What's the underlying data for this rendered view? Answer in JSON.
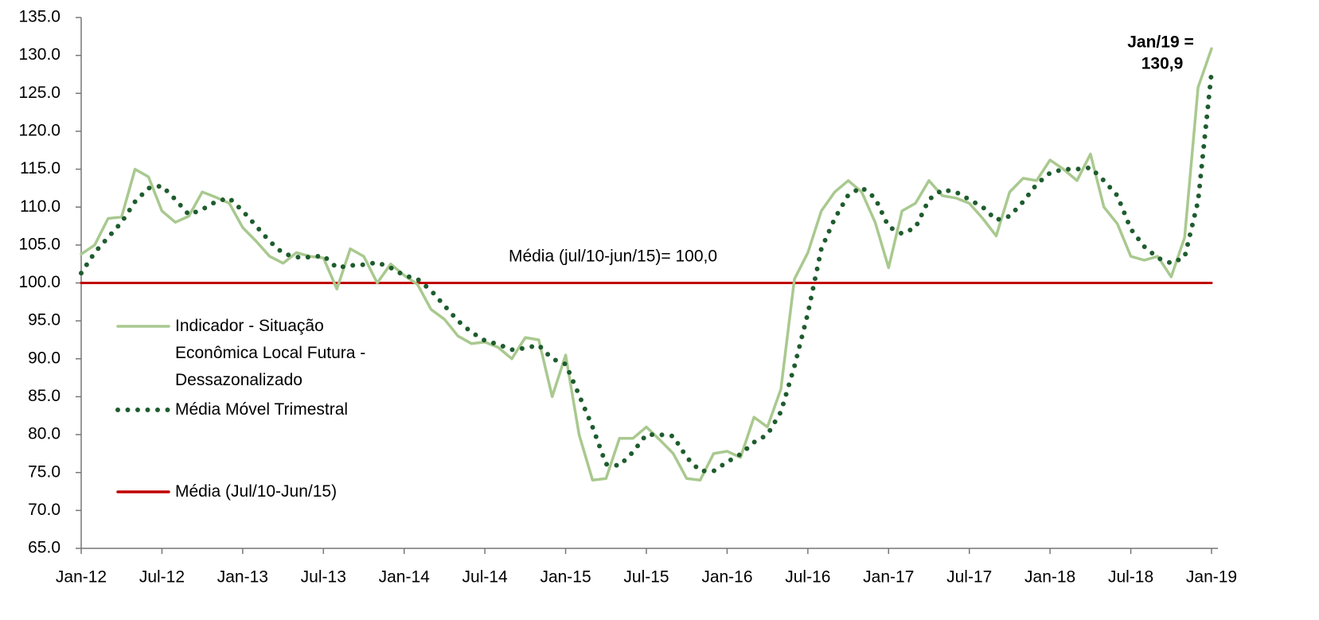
{
  "chart_data": {
    "type": "line",
    "categories": [
      "Jan-12",
      null,
      null,
      null,
      null,
      null,
      "Jul-12",
      null,
      null,
      null,
      null,
      null,
      "Jan-13",
      null,
      null,
      null,
      null,
      null,
      "Jul-13",
      null,
      null,
      null,
      null,
      null,
      "Jan-14",
      null,
      null,
      null,
      null,
      null,
      "Jul-14",
      null,
      null,
      null,
      null,
      null,
      "Jan-15",
      null,
      null,
      null,
      null,
      null,
      "Jul-15",
      null,
      null,
      null,
      null,
      null,
      "Jan-16",
      null,
      null,
      null,
      null,
      null,
      "Jul-16",
      null,
      null,
      null,
      null,
      null,
      "Jan-17",
      null,
      null,
      null,
      null,
      null,
      "Jul-17",
      null,
      null,
      null,
      null,
      null,
      "Jan-18",
      null,
      null,
      null,
      null,
      null,
      "Jul-18",
      null,
      null,
      null,
      null,
      null,
      "Jan-19"
    ],
    "series": [
      {
        "name": "Indicador - Situação Econômica Local Futura - Dessazonalizado",
        "color": "#a9c98f",
        "dash": "solid",
        "values": [
          103.8,
          105,
          108.5,
          108.7,
          115,
          114,
          109.5,
          108,
          108.8,
          112,
          111.3,
          110.5,
          107.3,
          105.5,
          103.5,
          102.6,
          104,
          103.5,
          103.3,
          99.2,
          104.5,
          103.5,
          100,
          102.5,
          101,
          99.8,
          96.5,
          95.2,
          93,
          92,
          92.2,
          91.5,
          90,
          92.8,
          92.5,
          85,
          90.5,
          80,
          74,
          74.2,
          79.5,
          79.5,
          81,
          79.3,
          77.5,
          74.2,
          74,
          77.5,
          77.8,
          77,
          82.3,
          81,
          86,
          100.5,
          104,
          109.5,
          112,
          113.5,
          112,
          108,
          102,
          109.5,
          110.5,
          113.5,
          111.5,
          111.2,
          110.5,
          108.5,
          106.2,
          112,
          113.8,
          113.5,
          116.2,
          115,
          113.5,
          117,
          110,
          107.8,
          103.5,
          103,
          103.5,
          100.8,
          106,
          125.8,
          130.9
        ]
      },
      {
        "name": "Média Móvel Trimestral",
        "color": "#1e5c2e",
        "dash": "dotted",
        "values": [
          101.3,
          104,
          106,
          108,
          110.7,
          112.5,
          112.8,
          111,
          109,
          109.7,
          110.7,
          111.2,
          109.5,
          107.5,
          105.5,
          103.9,
          103.4,
          103.4,
          103.6,
          102,
          102.3,
          102.4,
          102.7,
          102,
          101,
          100.5,
          99,
          97,
          95,
          93.5,
          92.4,
          91.9,
          91.2,
          91.4,
          91.8,
          90,
          89.3,
          85.2,
          81,
          76.1,
          75.9,
          77.7,
          80,
          80,
          79.8,
          77,
          75.2,
          75.2,
          76.4,
          77.4,
          79,
          80,
          83,
          89,
          96,
          104.5,
          108.5,
          111.6,
          112.6,
          111.2,
          107.4,
          106.5,
          107.3,
          111,
          112.3,
          112,
          111,
          110,
          108.3,
          108.8,
          110.7,
          113,
          114.5,
          115,
          115,
          115.2,
          113.5,
          111.5,
          107.1,
          104.8,
          103.3,
          102.6,
          103.4,
          110.8,
          127.8
        ]
      },
      {
        "name": "Média (Jul/10-Jun/15)",
        "color": "#c00000",
        "dash": "solid",
        "values": [
          100,
          100,
          100,
          100,
          100,
          100,
          100,
          100,
          100,
          100,
          100,
          100,
          100,
          100,
          100,
          100,
          100,
          100,
          100,
          100,
          100,
          100,
          100,
          100,
          100,
          100,
          100,
          100,
          100,
          100,
          100,
          100,
          100,
          100,
          100,
          100,
          100,
          100,
          100,
          100,
          100,
          100,
          100,
          100,
          100,
          100,
          100,
          100,
          100,
          100,
          100,
          100,
          100,
          100,
          100,
          100,
          100,
          100,
          100,
          100,
          100,
          100,
          100,
          100,
          100,
          100,
          100,
          100,
          100,
          100,
          100,
          100,
          100,
          100,
          100,
          100,
          100,
          100,
          100,
          100,
          100,
          100,
          100,
          100,
          100
        ]
      }
    ],
    "ylim": [
      65,
      135
    ],
    "yticks": [
      {
        "value": 65,
        "label": "65.0"
      },
      {
        "value": 70,
        "label": "70.0"
      },
      {
        "value": 75,
        "label": "75.0"
      },
      {
        "value": 80,
        "label": "80.0"
      },
      {
        "value": 85,
        "label": "85.0"
      },
      {
        "value": 90,
        "label": "90.0"
      },
      {
        "value": 95,
        "label": "95.0"
      },
      {
        "value": 100,
        "label": "100.0"
      },
      {
        "value": 105,
        "label": "105.0"
      },
      {
        "value": 110,
        "label": "110.0"
      },
      {
        "value": 115,
        "label": "115.0"
      },
      {
        "value": 120,
        "label": "120.0"
      },
      {
        "value": 125,
        "label": "125.0"
      },
      {
        "value": 130,
        "label": "130.0"
      },
      {
        "value": 135,
        "label": "135.0"
      }
    ],
    "annotations": [
      "Jan/19 =",
      "130,9",
      "Média (jul/10-jun/15)= 100,0"
    ],
    "grid": false,
    "legend": "left"
  }
}
